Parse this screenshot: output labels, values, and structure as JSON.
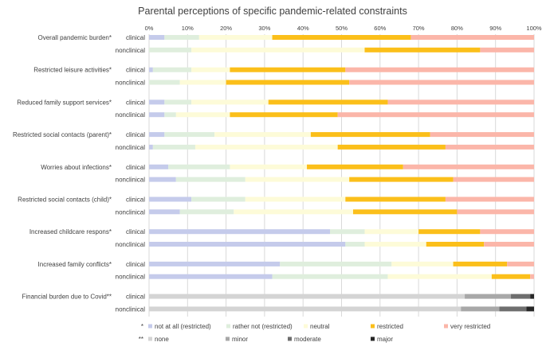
{
  "chart_data": {
    "type": "bar",
    "orientation": "horizontal",
    "stacked": "100%",
    "title": "Parental perceptions of specific pandemic-related constraints",
    "x_ticks": [
      "0%",
      "10%",
      "20%",
      "30%",
      "40%",
      "50%",
      "60%",
      "70%",
      "80%",
      "90%",
      "100%"
    ],
    "xlim": [
      0,
      100
    ],
    "colors": {
      "not at all (restricted)": "#c5cbeb",
      "rather not (restricted)": "#dfeedd",
      "neutral": "#fdfbd8",
      "restricted": "#fbbf1a",
      "very restricted": "#fbb6a9",
      "none": "#d4d4d4",
      "minor": "#a8a8a8",
      "moderate": "#6e6e6e",
      "major": "#262626"
    },
    "groups": [
      {
        "label": "Overall pandemic burden*",
        "scale": "restriction",
        "rows": [
          {
            "label": "clinical",
            "values": [
              4,
              9,
              19,
              36,
              32
            ]
          },
          {
            "label": "nonclinical",
            "values": [
              0,
              11,
              45,
              30,
              14
            ]
          }
        ]
      },
      {
        "label": "Restricted leisure activities*",
        "scale": "restriction",
        "rows": [
          {
            "label": "clinical",
            "values": [
              1,
              10,
              10,
              30,
              49
            ]
          },
          {
            "label": "nonclinical",
            "values": [
              0,
              8,
              12,
              32,
              48
            ]
          }
        ]
      },
      {
        "label": "Reduced family support services*",
        "scale": "restriction",
        "rows": [
          {
            "label": "clinical",
            "values": [
              4,
              7,
              20,
              31,
              38
            ]
          },
          {
            "label": "nonclinical",
            "values": [
              4,
              3,
              14,
              28,
              51
            ]
          }
        ]
      },
      {
        "label": "Restricted social contacts (parent)*",
        "scale": "restriction",
        "rows": [
          {
            "label": "clinical",
            "values": [
              4,
              13,
              25,
              31,
              27
            ]
          },
          {
            "label": "nonclinical",
            "values": [
              1,
              11,
              37,
              28,
              23
            ]
          }
        ]
      },
      {
        "label": "Worries about infections*",
        "scale": "restriction",
        "rows": [
          {
            "label": "clinical",
            "values": [
              5,
              16,
              20,
              25,
              34
            ]
          },
          {
            "label": "nonclinical",
            "values": [
              7,
              18,
              27,
              27,
              21
            ]
          }
        ]
      },
      {
        "label": "Restricted social contacts (child)*",
        "scale": "restriction",
        "rows": [
          {
            "label": "clinical",
            "values": [
              11,
              14,
              26,
              26,
              23
            ]
          },
          {
            "label": "nonclinical",
            "values": [
              8,
              14,
              31,
              27,
              20
            ]
          }
        ]
      },
      {
        "label": "Increased childcare respons*",
        "scale": "restriction",
        "rows": [
          {
            "label": "clinical",
            "values": [
              47,
              9,
              14,
              16,
              14
            ]
          },
          {
            "label": "nonclinical",
            "values": [
              51,
              5,
              16,
              15,
              13
            ]
          }
        ]
      },
      {
        "label": "Increased family conflicts*",
        "scale": "restriction",
        "rows": [
          {
            "label": "clinical",
            "values": [
              34,
              29,
              16,
              14,
              7
            ]
          },
          {
            "label": "nonclinical",
            "values": [
              32,
              30,
              27,
              10,
              1
            ]
          }
        ]
      },
      {
        "label": "Financial burden due to Covid**",
        "scale": "burden",
        "rows": [
          {
            "label": "clinical",
            "values": [
              82,
              12,
              5,
              1
            ]
          },
          {
            "label": "nonclinical",
            "values": [
              81,
              10,
              7,
              2
            ]
          }
        ]
      }
    ],
    "legend": {
      "restriction": {
        "marker": "*",
        "items": [
          "not at all (restricted)",
          "rather not (restricted)",
          "neutral",
          "restricted",
          "very restricted"
        ]
      },
      "burden": {
        "marker": "**",
        "items": [
          "none",
          "minor",
          "moderate",
          "major"
        ]
      }
    }
  }
}
